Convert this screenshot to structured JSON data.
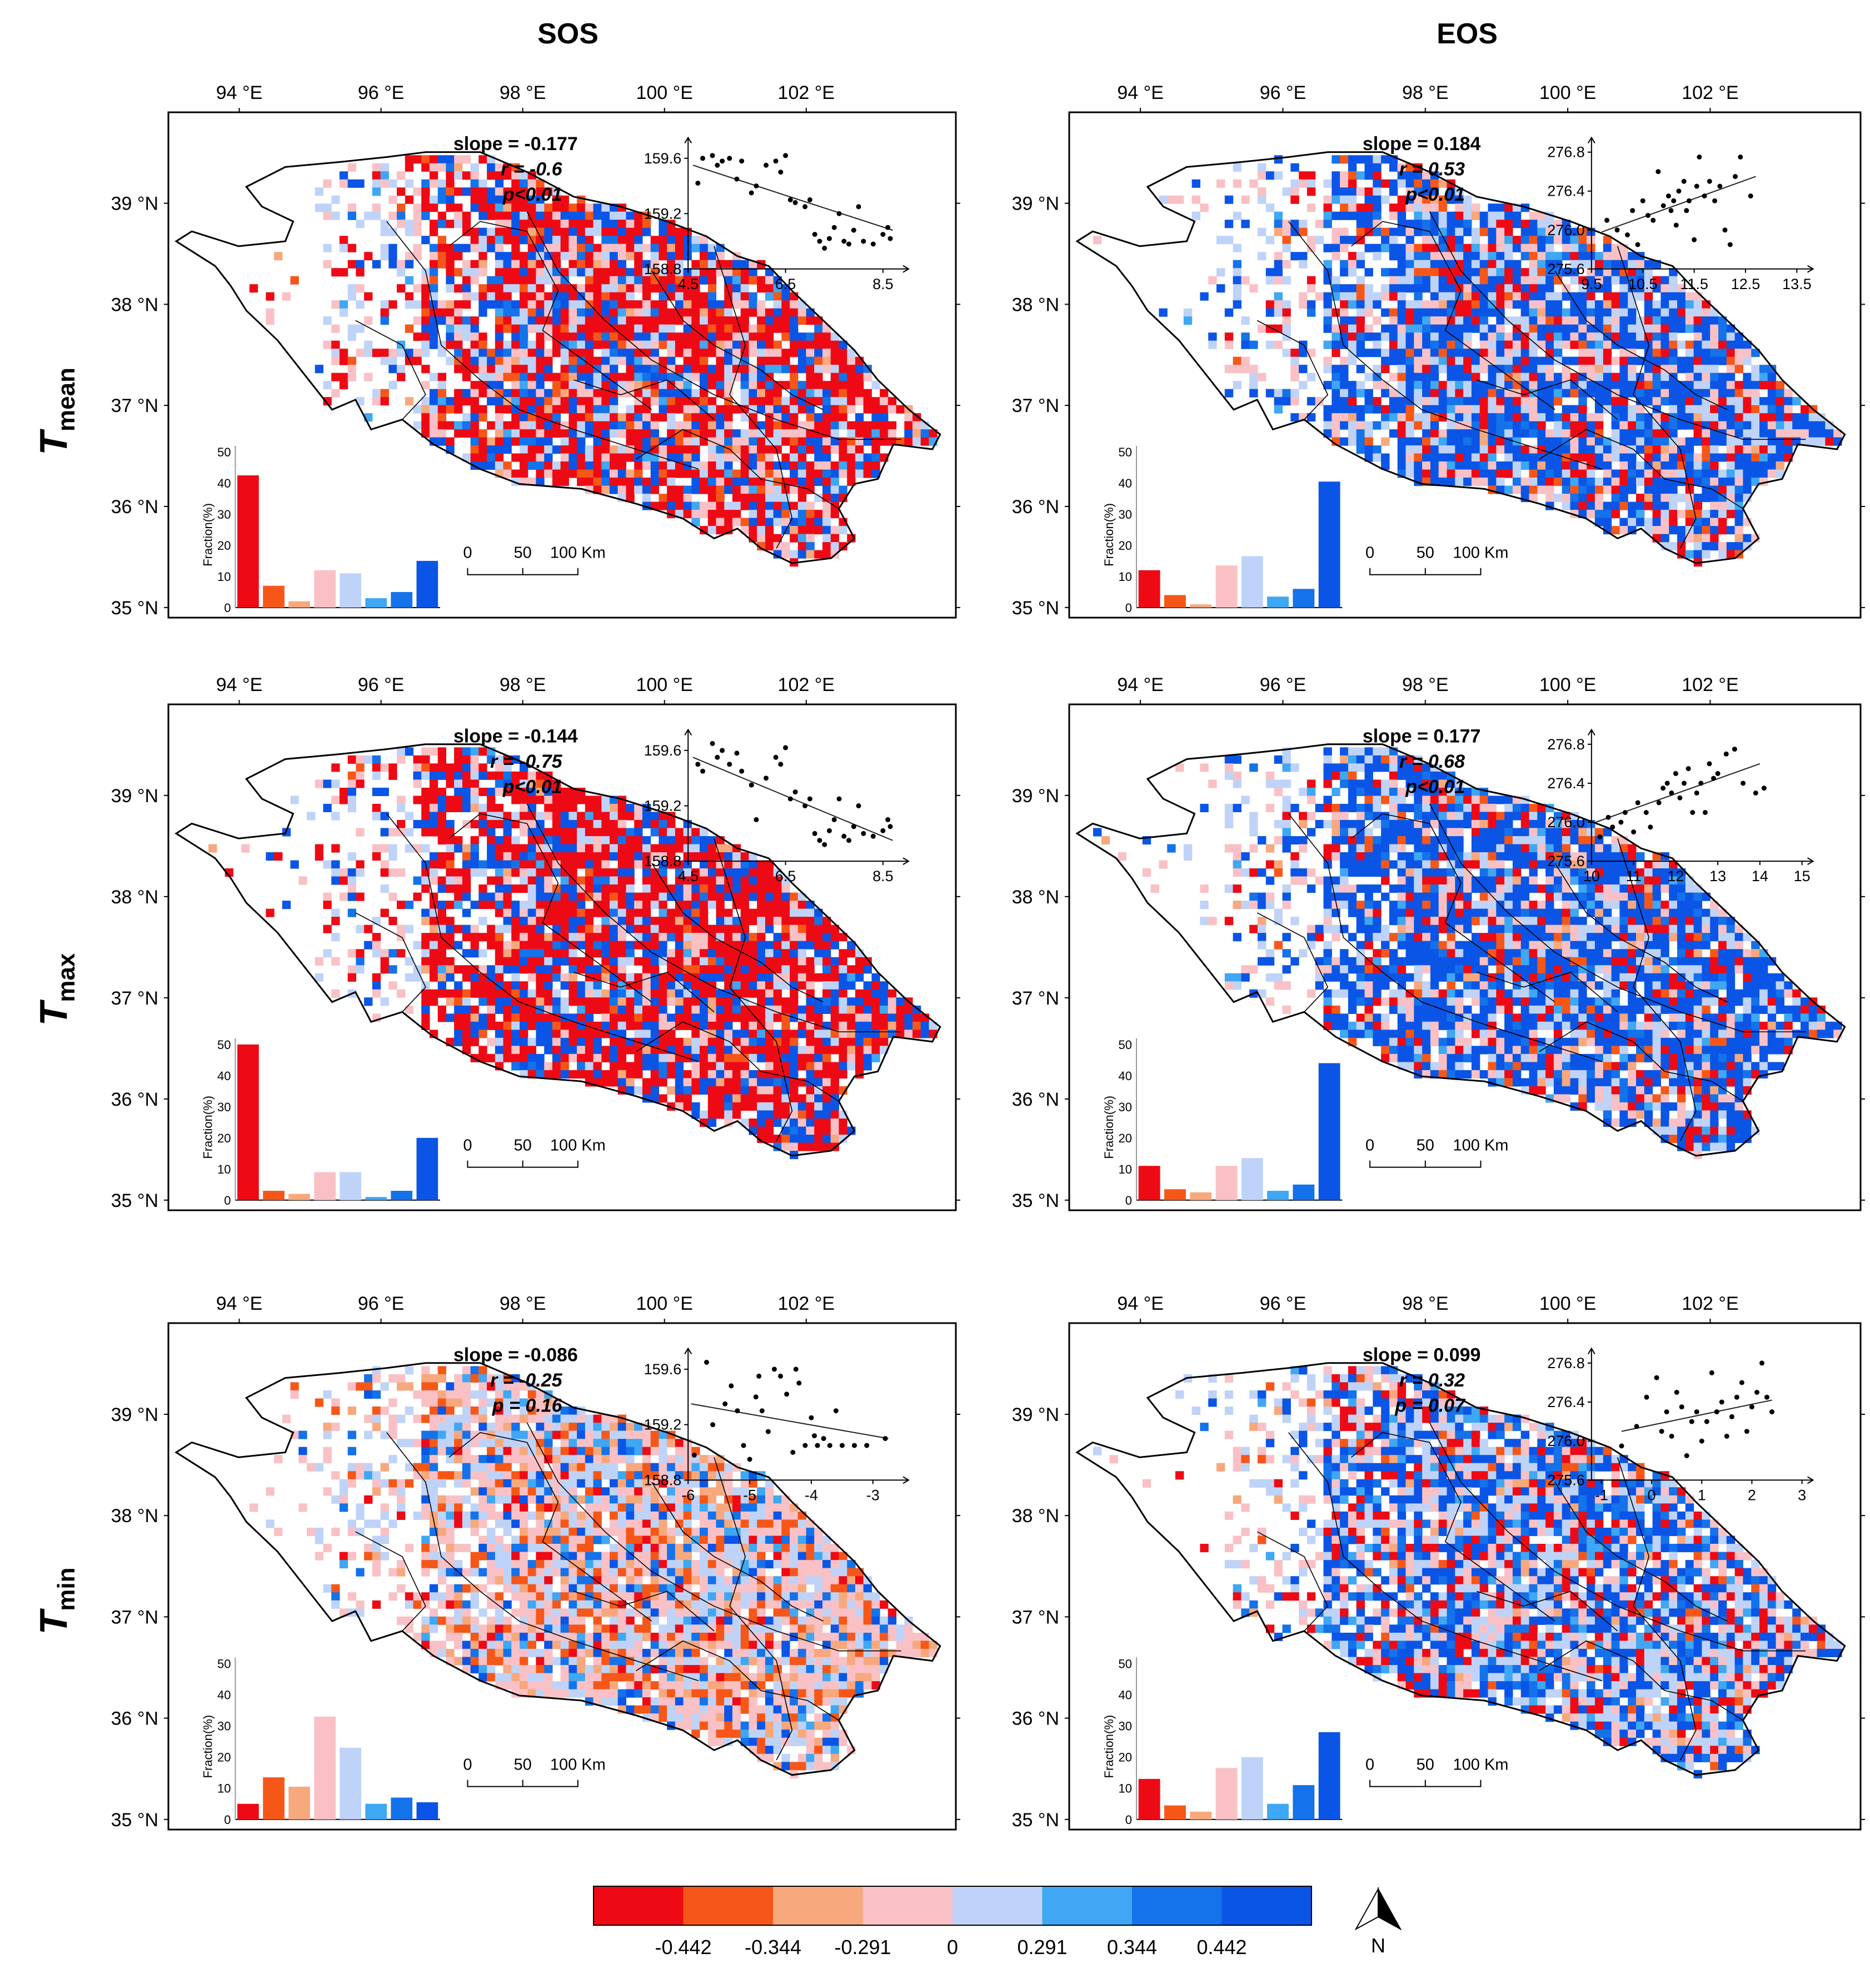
{
  "columns": [
    "SOS",
    "EOS"
  ],
  "rows": [
    {
      "main": "T",
      "sub": "mean"
    },
    {
      "main": "T",
      "sub": "max"
    },
    {
      "main": "T",
      "sub": "min"
    }
  ],
  "lon_labels": [
    "94 °E",
    "96 °E",
    "98 °E",
    "100 °E",
    "102 °E"
  ],
  "lat_labels": [
    "39 °N",
    "38 °N",
    "37 °N",
    "36 °N",
    "35 °N"
  ],
  "scale_bar": {
    "labels": [
      "0",
      "50",
      "100 Km"
    ]
  },
  "hist_ylabel": "Fraction(%)",
  "hist_yticks": [
    "0",
    "10",
    "20",
    "30",
    "40",
    "50"
  ],
  "hist_yticks_min": [
    "0",
    "10",
    "20",
    "30",
    "40",
    "50"
  ],
  "north_label": "N",
  "colors": {
    "classes": [
      "#ee0a14",
      "#f65718",
      "#f8a87d",
      "#f9c1c5",
      "#bfd3f8",
      "#3fa7f3",
      "#1472ea",
      "#0b55e6"
    ],
    "boundary": "#000000"
  },
  "colorbar": {
    "labels": [
      "-0.442",
      "-0.344",
      "-0.291",
      "0",
      "0.291",
      "0.344",
      "0.442"
    ]
  },
  "panels": [
    {
      "id": "sos-tmean",
      "slope": "slope = -0.177",
      "r": "r = -0.6",
      "p": "p<0.01",
      "hist": [
        42.5,
        7,
        2,
        12,
        11,
        3,
        5,
        15
      ],
      "scatter": {
        "x_ticks": [
          "4.5",
          "6.5",
          "8.5"
        ],
        "y_ticks": [
          "159.6",
          "159.2",
          "158.8"
        ],
        "xlim": [
          4.5,
          8.8
        ],
        "ylim": [
          158.8,
          159.75
        ],
        "line": [
          [
            4.6,
            159.55
          ],
          [
            8.7,
            159.08
          ]
        ],
        "points": [
          [
            4.7,
            159.42
          ],
          [
            4.8,
            159.6
          ],
          [
            5.0,
            159.62
          ],
          [
            5.1,
            159.55
          ],
          [
            5.2,
            159.58
          ],
          [
            5.35,
            159.6
          ],
          [
            5.5,
            159.45
          ],
          [
            5.6,
            159.58
          ],
          [
            5.8,
            159.35
          ],
          [
            5.9,
            159.4
          ],
          [
            6.1,
            159.55
          ],
          [
            6.3,
            159.58
          ],
          [
            6.4,
            159.5
          ],
          [
            6.5,
            159.62
          ],
          [
            6.6,
            159.3
          ],
          [
            6.7,
            159.28
          ],
          [
            6.9,
            159.25
          ],
          [
            7.0,
            159.3
          ],
          [
            7.1,
            159.05
          ],
          [
            7.2,
            159.0
          ],
          [
            7.3,
            158.95
          ],
          [
            7.4,
            159.02
          ],
          [
            7.5,
            159.1
          ],
          [
            7.6,
            159.2
          ],
          [
            7.7,
            159.0
          ],
          [
            7.8,
            158.98
          ],
          [
            7.9,
            159.08
          ],
          [
            8.0,
            159.25
          ],
          [
            8.1,
            159.0
          ],
          [
            8.3,
            158.98
          ],
          [
            8.5,
            159.05
          ],
          [
            8.6,
            159.1
          ],
          [
            8.65,
            159.02
          ]
        ]
      }
    },
    {
      "id": "eos-tmean",
      "slope": "slope = 0.184",
      "r": "r = 0.53",
      "p": "p<0.01",
      "hist": [
        12,
        4,
        1,
        13.5,
        16.5,
        3.5,
        6,
        40.5
      ],
      "scatter": {
        "x_ticks": [
          "9.5",
          "10.5",
          "11.5",
          "12.5",
          "13.5"
        ],
        "y_ticks": [
          "276.8",
          "276.4",
          "276.0",
          "275.6"
        ],
        "xlim": [
          9.5,
          13.6
        ],
        "ylim": [
          275.6,
          276.95
        ],
        "line": [
          [
            9.7,
            275.98
          ],
          [
            12.7,
            276.55
          ]
        ],
        "points": [
          [
            9.8,
            276.1
          ],
          [
            10.0,
            276.0
          ],
          [
            10.2,
            275.95
          ],
          [
            10.3,
            276.2
          ],
          [
            10.4,
            275.85
          ],
          [
            10.5,
            276.3
          ],
          [
            10.6,
            276.15
          ],
          [
            10.7,
            276.1
          ],
          [
            10.8,
            276.6
          ],
          [
            10.9,
            276.25
          ],
          [
            11.0,
            276.35
          ],
          [
            11.05,
            276.2
          ],
          [
            11.1,
            276.3
          ],
          [
            11.15,
            276.05
          ],
          [
            11.2,
            276.4
          ],
          [
            11.3,
            276.5
          ],
          [
            11.35,
            276.2
          ],
          [
            11.4,
            276.3
          ],
          [
            11.5,
            275.9
          ],
          [
            11.55,
            276.45
          ],
          [
            11.6,
            276.75
          ],
          [
            11.7,
            276.35
          ],
          [
            11.8,
            276.5
          ],
          [
            11.9,
            276.3
          ],
          [
            12.0,
            276.45
          ],
          [
            12.1,
            276.0
          ],
          [
            12.2,
            275.85
          ],
          [
            12.3,
            276.55
          ],
          [
            12.4,
            276.75
          ],
          [
            12.6,
            276.35
          ]
        ]
      }
    },
    {
      "id": "sos-tmax",
      "slope": "slope = -0.144",
      "r": "r = -0.75",
      "p": "p<0.01",
      "hist": [
        50,
        3,
        2,
        9,
        9,
        1,
        3,
        20
      ],
      "scatter": {
        "x_ticks": [
          "4.5",
          "6.5",
          "8.5"
        ],
        "y_ticks": [
          "159.6",
          "159.2",
          "158.8"
        ],
        "xlim": [
          4.5,
          8.8
        ],
        "ylim": [
          158.8,
          159.75
        ],
        "line": [
          [
            4.6,
            159.55
          ],
          [
            8.7,
            158.95
          ]
        ],
        "points": [
          [
            4.7,
            159.5
          ],
          [
            4.8,
            159.45
          ],
          [
            5.0,
            159.65
          ],
          [
            5.1,
            159.55
          ],
          [
            5.2,
            159.6
          ],
          [
            5.35,
            159.5
          ],
          [
            5.5,
            159.58
          ],
          [
            5.6,
            159.45
          ],
          [
            5.8,
            159.35
          ],
          [
            5.9,
            159.1
          ],
          [
            6.1,
            159.4
          ],
          [
            6.3,
            159.55
          ],
          [
            6.4,
            159.5
          ],
          [
            6.5,
            159.62
          ],
          [
            6.6,
            159.25
          ],
          [
            6.7,
            159.3
          ],
          [
            6.9,
            159.2
          ],
          [
            7.0,
            159.25
          ],
          [
            7.1,
            159.0
          ],
          [
            7.2,
            158.95
          ],
          [
            7.3,
            158.92
          ],
          [
            7.4,
            159.02
          ],
          [
            7.5,
            159.1
          ],
          [
            7.6,
            159.25
          ],
          [
            7.7,
            158.98
          ],
          [
            7.8,
            158.95
          ],
          [
            7.9,
            159.05
          ],
          [
            8.0,
            159.2
          ],
          [
            8.1,
            159.0
          ],
          [
            8.3,
            158.98
          ],
          [
            8.5,
            159.02
          ],
          [
            8.6,
            159.1
          ],
          [
            8.65,
            159.05
          ]
        ]
      }
    },
    {
      "id": "eos-tmax",
      "slope": "slope = 0.177",
      "r": "r = 0.68",
      "p": "p<0.01",
      "hist": [
        11,
        3.5,
        2.5,
        11,
        13.5,
        3,
        5,
        44
      ],
      "scatter": {
        "x_ticks": [
          "10",
          "11",
          "12",
          "13",
          "14",
          "15"
        ],
        "y_ticks": [
          "276.8",
          "276.4",
          "276.0",
          "275.6"
        ],
        "xlim": [
          10,
          15
        ],
        "ylim": [
          275.6,
          276.95
        ],
        "line": [
          [
            10.1,
            276.0
          ],
          [
            14.0,
            276.6
          ]
        ],
        "points": [
          [
            10.2,
            275.85
          ],
          [
            10.4,
            276.05
          ],
          [
            10.5,
            275.95
          ],
          [
            10.7,
            276.0
          ],
          [
            10.8,
            276.1
          ],
          [
            11.0,
            275.9
          ],
          [
            11.1,
            276.2
          ],
          [
            11.3,
            276.1
          ],
          [
            11.4,
            275.95
          ],
          [
            11.6,
            276.2
          ],
          [
            11.7,
            276.35
          ],
          [
            11.8,
            276.4
          ],
          [
            11.9,
            276.3
          ],
          [
            12.0,
            276.5
          ],
          [
            12.1,
            276.25
          ],
          [
            12.2,
            276.4
          ],
          [
            12.3,
            276.55
          ],
          [
            12.4,
            276.1
          ],
          [
            12.5,
            276.3
          ],
          [
            12.6,
            276.4
          ],
          [
            12.7,
            276.1
          ],
          [
            12.8,
            276.6
          ],
          [
            12.9,
            276.45
          ],
          [
            13.0,
            276.5
          ],
          [
            13.2,
            276.7
          ],
          [
            13.4,
            276.75
          ],
          [
            13.6,
            276.4
          ],
          [
            13.9,
            276.3
          ],
          [
            14.1,
            276.35
          ]
        ]
      }
    },
    {
      "id": "sos-tmin",
      "slope": "slope = -0.086",
      "r": "r = -0.25",
      "p": "p = 0.16",
      "hist": [
        5,
        13.5,
        10.5,
        33,
        23,
        5,
        7,
        5.5
      ],
      "scatter": {
        "x_ticks": [
          "-6",
          "-5",
          "-4",
          "-3"
        ],
        "y_ticks": [
          "159.6",
          "159.2",
          "158.8"
        ],
        "xlim": [
          -6,
          -2.6
        ],
        "ylim": [
          158.8,
          159.75
        ],
        "line": [
          [
            -5.95,
            159.35
          ],
          [
            -2.75,
            159.1
          ]
        ],
        "points": [
          [
            -5.9,
            158.98
          ],
          [
            -5.7,
            159.65
          ],
          [
            -5.6,
            159.2
          ],
          [
            -5.4,
            159.35
          ],
          [
            -5.3,
            159.48
          ],
          [
            -5.2,
            159.3
          ],
          [
            -5.1,
            159.05
          ],
          [
            -5.0,
            158.95
          ],
          [
            -4.9,
            159.4
          ],
          [
            -4.85,
            159.55
          ],
          [
            -4.8,
            159.3
          ],
          [
            -4.7,
            159.15
          ],
          [
            -4.6,
            159.6
          ],
          [
            -4.5,
            159.55
          ],
          [
            -4.4,
            159.42
          ],
          [
            -4.3,
            159.0
          ],
          [
            -4.25,
            159.6
          ],
          [
            -4.2,
            159.5
          ],
          [
            -4.1,
            159.05
          ],
          [
            -4.0,
            159.25
          ],
          [
            -3.95,
            159.12
          ],
          [
            -3.9,
            159.05
          ],
          [
            -3.8,
            159.1
          ],
          [
            -3.7,
            159.05
          ],
          [
            -3.6,
            159.3
          ],
          [
            -3.5,
            159.05
          ],
          [
            -3.3,
            159.05
          ],
          [
            -3.1,
            159.05
          ],
          [
            -2.8,
            159.1
          ]
        ]
      }
    },
    {
      "id": "eos-tmin",
      "slope": "slope = 0.099",
      "r": "r = 0.32",
      "p": "p = 0.07",
      "hist": [
        13,
        4.5,
        2.5,
        16.5,
        20,
        5,
        11,
        28
      ],
      "scatter": {
        "x_ticks": [
          "-1",
          "0",
          "1",
          "2",
          "3"
        ],
        "y_ticks": [
          "276.8",
          "276.4",
          "276.0",
          "275.6"
        ],
        "xlim": [
          -1.2,
          3
        ],
        "ylim": [
          275.6,
          276.95
        ],
        "line": [
          [
            -0.6,
            276.1
          ],
          [
            2.4,
            276.42
          ]
        ],
        "points": [
          [
            -0.6,
            275.95
          ],
          [
            -0.3,
            276.15
          ],
          [
            -0.1,
            276.45
          ],
          [
            0.1,
            276.65
          ],
          [
            0.2,
            276.1
          ],
          [
            0.3,
            276.3
          ],
          [
            0.4,
            276.05
          ],
          [
            0.5,
            276.5
          ],
          [
            0.6,
            276.35
          ],
          [
            0.7,
            275.85
          ],
          [
            0.8,
            276.2
          ],
          [
            0.9,
            276.3
          ],
          [
            1.0,
            276.0
          ],
          [
            1.1,
            276.2
          ],
          [
            1.2,
            276.7
          ],
          [
            1.3,
            276.3
          ],
          [
            1.4,
            276.4
          ],
          [
            1.5,
            276.05
          ],
          [
            1.6,
            276.25
          ],
          [
            1.7,
            276.45
          ],
          [
            1.8,
            276.6
          ],
          [
            1.9,
            276.1
          ],
          [
            2.0,
            276.35
          ],
          [
            2.1,
            276.5
          ],
          [
            2.2,
            276.8
          ],
          [
            2.3,
            276.45
          ],
          [
            2.4,
            276.3
          ]
        ]
      }
    }
  ]
}
